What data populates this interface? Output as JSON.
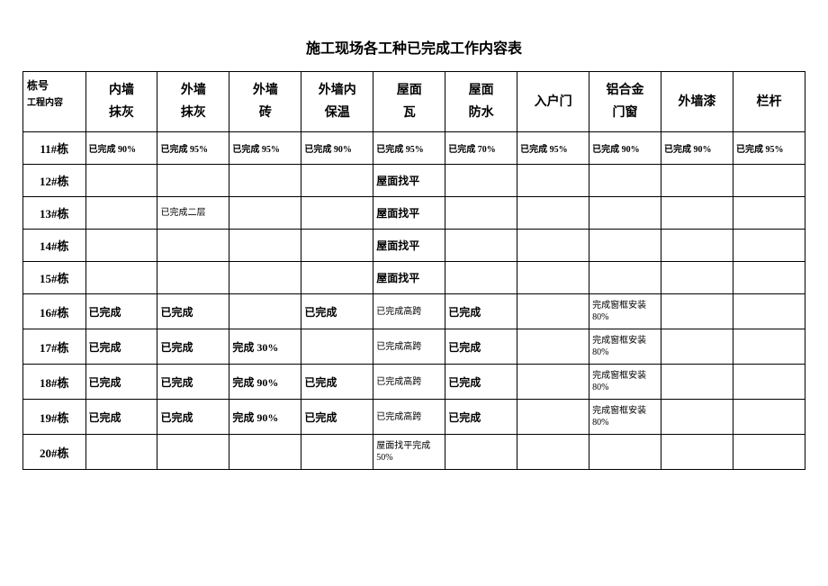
{
  "title": "施工现场各工种已完成工作内容表",
  "corner": {
    "line1": "栋号",
    "line2": "工程内容"
  },
  "columns": [
    {
      "line1": "内墙",
      "line2": "抹灰"
    },
    {
      "line1": "外墙",
      "line2": "抹灰"
    },
    {
      "line1": "外墙",
      "line2": "砖"
    },
    {
      "line1": "外墙内",
      "line2": "保温"
    },
    {
      "line1": "屋面",
      "line2": "瓦"
    },
    {
      "line1": "屋面",
      "line2": "防水"
    },
    {
      "line1": "入户门",
      "line2": ""
    },
    {
      "line1": "铝合金",
      "line2": "门窗"
    },
    {
      "line1": "外墙漆",
      "line2": ""
    },
    {
      "line1": "栏杆",
      "line2": ""
    }
  ],
  "rows": [
    {
      "header": "11#栋",
      "cells": [
        {
          "text": "已完成 90%",
          "cls": "small"
        },
        {
          "text": "已完成 95%",
          "cls": "small"
        },
        {
          "text": "已完成 95%",
          "cls": "small"
        },
        {
          "text": "已完成 90%",
          "cls": "small"
        },
        {
          "text": "已完成 95%",
          "cls": "small"
        },
        {
          "text": "已完成 70%",
          "cls": "small"
        },
        {
          "text": "已完成 95%",
          "cls": "small"
        },
        {
          "text": "已完成 90%",
          "cls": "small"
        },
        {
          "text": "已完成 90%",
          "cls": "small"
        },
        {
          "text": "已完成 95%",
          "cls": "small"
        }
      ]
    },
    {
      "header": "12#栋",
      "cells": [
        {
          "text": "",
          "cls": ""
        },
        {
          "text": "",
          "cls": ""
        },
        {
          "text": "",
          "cls": ""
        },
        {
          "text": "",
          "cls": ""
        },
        {
          "text": "屋面找平",
          "cls": "medium"
        },
        {
          "text": "",
          "cls": ""
        },
        {
          "text": "",
          "cls": ""
        },
        {
          "text": "",
          "cls": ""
        },
        {
          "text": "",
          "cls": ""
        },
        {
          "text": "",
          "cls": ""
        }
      ]
    },
    {
      "header": "13#栋",
      "cells": [
        {
          "text": "",
          "cls": ""
        },
        {
          "text": "已完成二层",
          "cls": "tiny"
        },
        {
          "text": "",
          "cls": ""
        },
        {
          "text": "",
          "cls": ""
        },
        {
          "text": "屋面找平",
          "cls": "medium"
        },
        {
          "text": "",
          "cls": ""
        },
        {
          "text": "",
          "cls": ""
        },
        {
          "text": "",
          "cls": ""
        },
        {
          "text": "",
          "cls": ""
        },
        {
          "text": "",
          "cls": ""
        }
      ]
    },
    {
      "header": "14#栋",
      "cells": [
        {
          "text": "",
          "cls": ""
        },
        {
          "text": "",
          "cls": ""
        },
        {
          "text": "",
          "cls": ""
        },
        {
          "text": "",
          "cls": ""
        },
        {
          "text": "屋面找平",
          "cls": "medium"
        },
        {
          "text": "",
          "cls": ""
        },
        {
          "text": "",
          "cls": ""
        },
        {
          "text": "",
          "cls": ""
        },
        {
          "text": "",
          "cls": ""
        },
        {
          "text": "",
          "cls": ""
        }
      ]
    },
    {
      "header": "15#栋",
      "cells": [
        {
          "text": "",
          "cls": ""
        },
        {
          "text": "",
          "cls": ""
        },
        {
          "text": "",
          "cls": ""
        },
        {
          "text": "",
          "cls": ""
        },
        {
          "text": "屋面找平",
          "cls": "medium"
        },
        {
          "text": "",
          "cls": ""
        },
        {
          "text": "",
          "cls": ""
        },
        {
          "text": "",
          "cls": ""
        },
        {
          "text": "",
          "cls": ""
        },
        {
          "text": "",
          "cls": ""
        }
      ]
    },
    {
      "header": "16#栋",
      "cells": [
        {
          "text": "已完成",
          "cls": "bold"
        },
        {
          "text": "已完成",
          "cls": "bold"
        },
        {
          "text": "",
          "cls": ""
        },
        {
          "text": "已完成",
          "cls": "bold"
        },
        {
          "text": "已完成高跨",
          "cls": "tiny"
        },
        {
          "text": "已完成",
          "cls": "bold"
        },
        {
          "text": "",
          "cls": ""
        },
        {
          "text": "完成窗框安装 80%",
          "cls": "tiny"
        },
        {
          "text": "",
          "cls": ""
        },
        {
          "text": "",
          "cls": ""
        }
      ]
    },
    {
      "header": "17#栋",
      "cells": [
        {
          "text": "已完成",
          "cls": "bold"
        },
        {
          "text": "已完成",
          "cls": "bold"
        },
        {
          "text": "完成 30%",
          "cls": "bold"
        },
        {
          "text": "",
          "cls": ""
        },
        {
          "text": "已完成高跨",
          "cls": "tiny"
        },
        {
          "text": "已完成",
          "cls": "bold"
        },
        {
          "text": "",
          "cls": ""
        },
        {
          "text": "完成窗框安装 80%",
          "cls": "tiny"
        },
        {
          "text": "",
          "cls": ""
        },
        {
          "text": "",
          "cls": ""
        }
      ]
    },
    {
      "header": "18#栋",
      "cells": [
        {
          "text": "已完成",
          "cls": "bold"
        },
        {
          "text": "已完成",
          "cls": "bold"
        },
        {
          "text": "完成 90%",
          "cls": "bold"
        },
        {
          "text": "已完成",
          "cls": "bold"
        },
        {
          "text": "已完成高跨",
          "cls": "tiny"
        },
        {
          "text": "已完成",
          "cls": "bold"
        },
        {
          "text": "",
          "cls": ""
        },
        {
          "text": "完成窗框安装 80%",
          "cls": "tiny"
        },
        {
          "text": "",
          "cls": ""
        },
        {
          "text": "",
          "cls": ""
        }
      ]
    },
    {
      "header": "19#栋",
      "cells": [
        {
          "text": "已完成",
          "cls": "bold"
        },
        {
          "text": "已完成",
          "cls": "bold"
        },
        {
          "text": "完成 90%",
          "cls": "bold"
        },
        {
          "text": "已完成",
          "cls": "bold"
        },
        {
          "text": "已完成高跨",
          "cls": "tiny"
        },
        {
          "text": "已完成",
          "cls": "bold"
        },
        {
          "text": "",
          "cls": ""
        },
        {
          "text": "完成窗框安装 80%",
          "cls": "tiny"
        },
        {
          "text": "",
          "cls": ""
        },
        {
          "text": "",
          "cls": ""
        }
      ]
    },
    {
      "header": "20#栋",
      "cells": [
        {
          "text": "",
          "cls": ""
        },
        {
          "text": "",
          "cls": ""
        },
        {
          "text": "",
          "cls": ""
        },
        {
          "text": "",
          "cls": ""
        },
        {
          "text": "屋面找平完成 50%",
          "cls": "tiny"
        },
        {
          "text": "",
          "cls": ""
        },
        {
          "text": "",
          "cls": ""
        },
        {
          "text": "",
          "cls": ""
        },
        {
          "text": "",
          "cls": ""
        },
        {
          "text": "",
          "cls": ""
        }
      ]
    }
  ]
}
